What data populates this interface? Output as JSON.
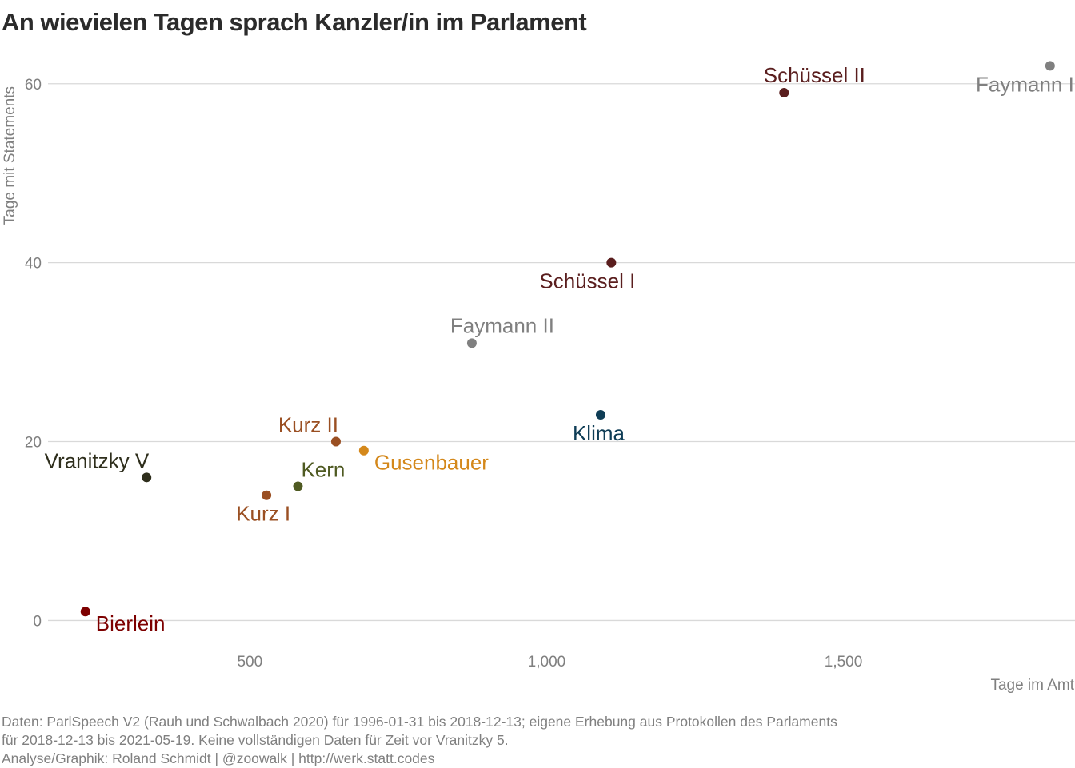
{
  "title": "An wievielen Tagen sprach Kanzler/in im Parlament",
  "caption": {
    "line1": "Daten: ParlSpeech V2 (Rauh und Schwalbach 2020) für 1996-01-31 bis 2018-12-13; eigene Erhebung aus Protokollen des Parlaments",
    "line2": "für 2018-12-13 bis 2021-05-19. Keine vollständigen Daten für Zeit vor Vranitzky 5.",
    "line3": "Analyse/Graphik: Roland Schmidt | @zoowalk | http://werk.statt.codes"
  },
  "chart_data": {
    "type": "scatter",
    "xlabel": "Tage im Amt",
    "ylabel": "Tage mit Statements",
    "xlim": [
      160,
      1890
    ],
    "ylim": [
      -3,
      64
    ],
    "x_ticks": [
      500,
      1000,
      1500
    ],
    "x_tick_labels": [
      "500",
      "1,000",
      "1,500"
    ],
    "y_ticks": [
      0,
      20,
      40,
      60
    ],
    "y_tick_labels": [
      "0",
      "20",
      "40",
      "60"
    ],
    "grid": "horizontal",
    "legend": "none",
    "points": [
      {
        "label": "Faymann I",
        "x": 1848,
        "y": 62,
        "color": "#808080",
        "label_pos": "below-left"
      },
      {
        "label": "Schüssel II",
        "x": 1400,
        "y": 59,
        "color": "#5a1e1e",
        "label_pos": "above"
      },
      {
        "label": "Schüssel I",
        "x": 1109,
        "y": 40,
        "color": "#5a1e1e",
        "label_pos": "below-left"
      },
      {
        "label": "Faymann II",
        "x": 874,
        "y": 31,
        "color": "#808080",
        "label_pos": "above"
      },
      {
        "label": "Klima",
        "x": 1091,
        "y": 23,
        "color": "#0f3d56",
        "label_pos": "below-left"
      },
      {
        "label": "Kurz II",
        "x": 645,
        "y": 20,
        "color": "#9a4f22",
        "label_pos": "above-left"
      },
      {
        "label": "Gusenbauer",
        "x": 692,
        "y": 19,
        "color": "#d4881b",
        "label_pos": "below-right"
      },
      {
        "label": "Vranitzky V",
        "x": 326,
        "y": 16,
        "color": "#2e2e1c",
        "label_pos": "above-left"
      },
      {
        "label": "Kern",
        "x": 581,
        "y": 15,
        "color": "#4f5a22",
        "label_pos": "right"
      },
      {
        "label": "Kurz I",
        "x": 528,
        "y": 14,
        "color": "#9a4f22",
        "label_pos": "below-left"
      },
      {
        "label": "Bierlein",
        "x": 223,
        "y": 1,
        "color": "#7d0000",
        "label_pos": "below-right"
      }
    ]
  }
}
